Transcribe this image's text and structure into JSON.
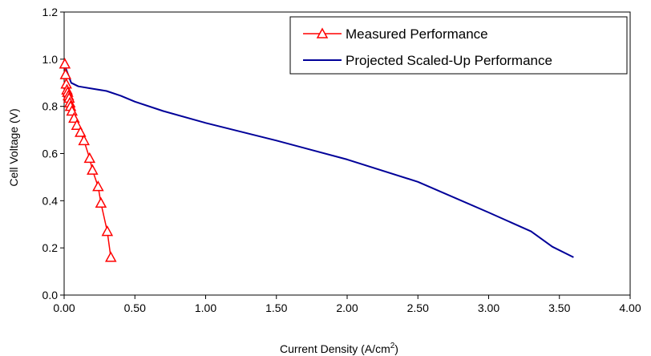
{
  "chart_data": {
    "type": "line",
    "title": "",
    "xlabel": "Current Density (A/cm",
    "xlabel_sup": "2",
    "xlabel_close": ")",
    "ylabel": "Cell Voltage (V)",
    "xlim": [
      0,
      4
    ],
    "ylim": [
      0,
      1.2
    ],
    "x_ticks": [
      "0.00",
      "0.50",
      "1.00",
      "1.50",
      "2.00",
      "2.50",
      "3.00",
      "3.50",
      "4.00"
    ],
    "y_ticks": [
      "0.0",
      "0.2",
      "0.4",
      "0.6",
      "0.8",
      "1.0",
      "1.2"
    ],
    "grid": false,
    "legend_position": "top-right",
    "series": [
      {
        "name": "Measured Performance",
        "color": "#ff0000",
        "marker": "triangle-open",
        "x": [
          0.005,
          0.01,
          0.015,
          0.02,
          0.025,
          0.03,
          0.035,
          0.04,
          0.045,
          0.055,
          0.07,
          0.09,
          0.115,
          0.14,
          0.18,
          0.2,
          0.24,
          0.26,
          0.305,
          0.33
        ],
        "y": [
          0.98,
          0.935,
          0.895,
          0.87,
          0.86,
          0.845,
          0.835,
          0.815,
          0.8,
          0.78,
          0.75,
          0.72,
          0.69,
          0.655,
          0.58,
          0.53,
          0.46,
          0.39,
          0.27,
          0.16
        ]
      },
      {
        "name": "Projected Scaled-Up Performance",
        "color": "#000099",
        "marker": "none",
        "x": [
          0.0,
          0.05,
          0.1,
          0.2,
          0.3,
          0.4,
          0.5,
          0.7,
          1.0,
          1.5,
          2.0,
          2.5,
          3.0,
          3.3,
          3.45,
          3.6
        ],
        "y": [
          0.98,
          0.9,
          0.885,
          0.875,
          0.865,
          0.845,
          0.82,
          0.78,
          0.73,
          0.655,
          0.575,
          0.48,
          0.35,
          0.27,
          0.205,
          0.16
        ]
      }
    ]
  }
}
